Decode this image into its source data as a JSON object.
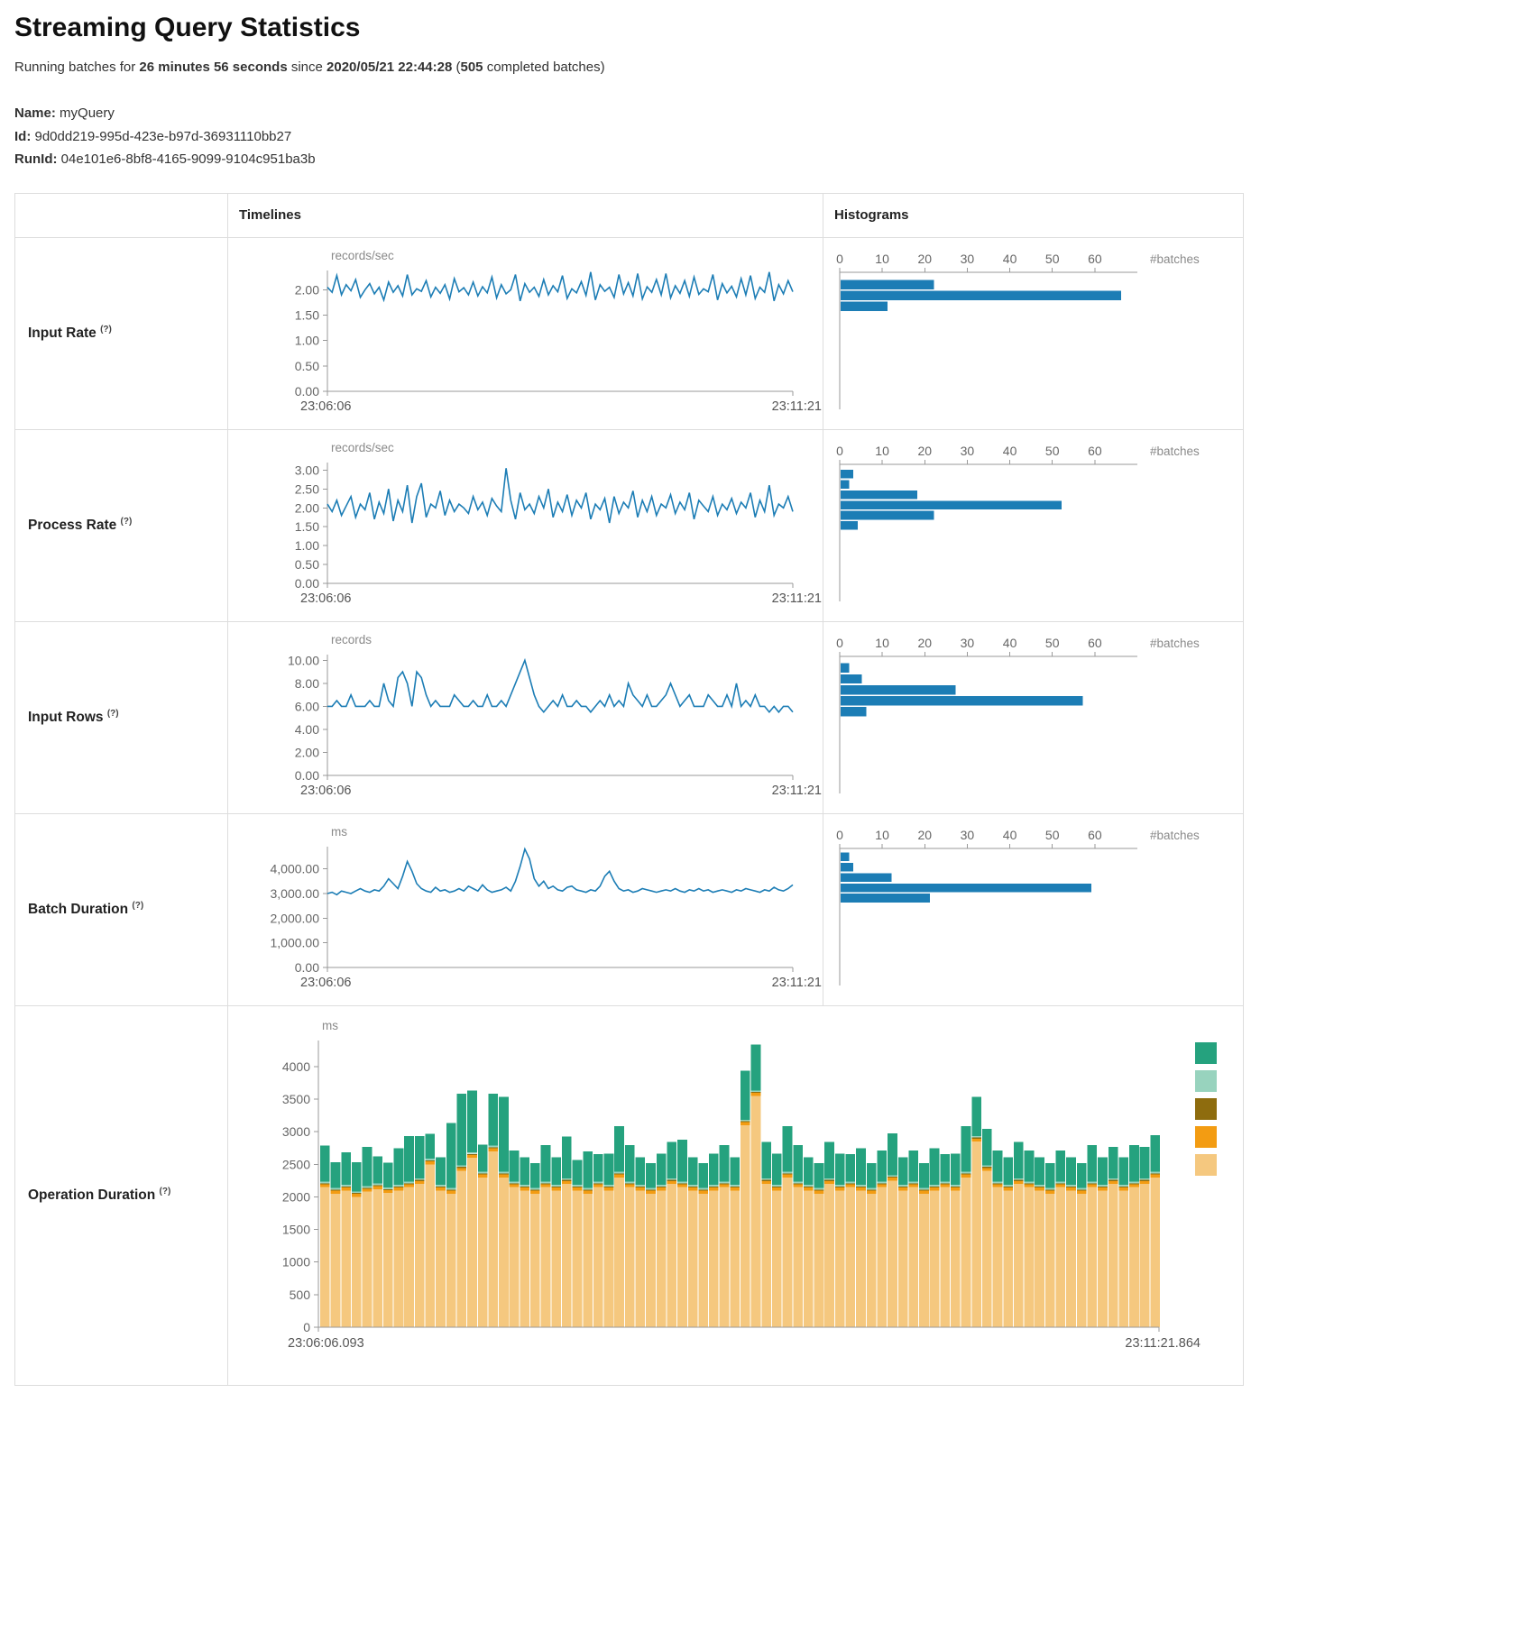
{
  "page": {
    "title": "Streaming Query Statistics",
    "subtitle": {
      "prefix": "Running batches for ",
      "duration": "26 minutes 56 seconds",
      "middle": " since ",
      "start_time": "2020/05/21 22:44:28",
      "paren_open": " (",
      "batch_count": "505",
      "suffix": " completed batches)"
    },
    "meta": {
      "name_label": "Name:",
      "name_value": "myQuery",
      "id_label": "Id:",
      "id_value": "9d0dd219-995d-423e-b97d-36931110bb27",
      "runid_label": "RunId:",
      "runid_value": "04e101e6-8bf8-4165-9099-9104c951ba3b"
    }
  },
  "table": {
    "headers": {
      "timelines": "Timelines",
      "histograms": "Histograms"
    },
    "rows": [
      {
        "label": "Input Rate",
        "help": "(?)"
      },
      {
        "label": "Process Rate",
        "help": "(?)"
      },
      {
        "label": "Input Rows",
        "help": "(?)"
      },
      {
        "label": "Batch Duration",
        "help": "(?)"
      },
      {
        "label": "Operation Duration",
        "help": "(?)"
      }
    ]
  },
  "colors": {
    "blue": "#1c7db5",
    "green": "#25a27e",
    "light_green": "#98d3be",
    "olive": "#8e6c0e",
    "orange": "#f39c12",
    "tan": "#f5c87f"
  },
  "chart_data": [
    {
      "id": "input-rate-timeline",
      "type": "line",
      "unit": "records/sec",
      "x_start_label": "23:06:06",
      "x_end_label": "23:11:21",
      "y_ticks": [
        0,
        0.5,
        1,
        1.5,
        2
      ],
      "y_tick_labels": [
        "0.00",
        "0.50",
        "1.00",
        "1.50",
        "2.00"
      ],
      "y_max": 2.38,
      "values": [
        2.05,
        1.95,
        2.28,
        1.9,
        2.1,
        1.98,
        2.2,
        1.85,
        2.0,
        2.12,
        1.92,
        2.05,
        1.8,
        2.15,
        1.95,
        2.08,
        1.88,
        2.3,
        1.9,
        2.02,
        1.97,
        2.18,
        1.86,
        2.05,
        1.93,
        2.1,
        1.82,
        2.22,
        1.96,
        2.04,
        1.9,
        2.15,
        1.88,
        2.06,
        1.94,
        2.25,
        1.84,
        2.1,
        1.92,
        2.0,
        2.3,
        1.78,
        2.12,
        1.95,
        2.05,
        1.87,
        2.2,
        1.9,
        2.08,
        1.96,
        2.28,
        1.83,
        2.02,
        1.94,
        2.16,
        1.89,
        2.35,
        1.8,
        2.1,
        1.97,
        2.05,
        1.85,
        2.3,
        1.92,
        2.14,
        1.88,
        2.32,
        1.82,
        2.06,
        1.95,
        2.2,
        1.9,
        2.32,
        1.84,
        2.08,
        1.93,
        2.18,
        1.87,
        2.25,
        1.91,
        2.02,
        1.96,
        2.3,
        1.8,
        2.12,
        1.94,
        2.07,
        1.86,
        2.22,
        1.9,
        2.28,
        1.83,
        2.05,
        1.95,
        2.35,
        1.78,
        2.1,
        1.92,
        2.18,
        1.96
      ]
    },
    {
      "id": "input-rate-histogram",
      "type": "bar",
      "orientation": "horizontal",
      "x_label": "#batches",
      "x_ticks": [
        0,
        10,
        20,
        30,
        40,
        50,
        60
      ],
      "x_max": 70,
      "bars": [
        {
          "count": 22,
          "top": 0.055,
          "height": 0.075
        },
        {
          "count": 66,
          "top": 0.135,
          "height": 0.075
        },
        {
          "count": 11,
          "top": 0.215,
          "height": 0.075
        }
      ]
    },
    {
      "id": "process-rate-timeline",
      "type": "line",
      "unit": "records/sec",
      "x_start_label": "23:06:06",
      "x_end_label": "23:11:21",
      "y_ticks": [
        0,
        0.5,
        1,
        1.5,
        2,
        2.5,
        3
      ],
      "y_tick_labels": [
        "0.00",
        "0.50",
        "1.00",
        "1.50",
        "2.00",
        "2.50",
        "3.00"
      ],
      "y_max": 3.2,
      "values": [
        2.1,
        1.9,
        2.2,
        1.8,
        2.05,
        2.3,
        1.75,
        2.1,
        1.95,
        2.4,
        1.7,
        2.15,
        1.85,
        2.5,
        1.65,
        2.2,
        1.9,
        2.6,
        1.6,
        2.3,
        2.65,
        1.75,
        2.1,
        2.0,
        2.45,
        1.8,
        2.2,
        1.9,
        2.1,
        2.0,
        1.85,
        2.3,
        1.95,
        2.15,
        1.8,
        2.25,
        2.05,
        1.9,
        3.05,
        2.2,
        1.7,
        2.4,
        1.95,
        2.1,
        1.85,
        2.3,
        2.0,
        2.5,
        1.75,
        2.15,
        1.9,
        2.35,
        1.8,
        2.2,
        2.0,
        2.4,
        1.7,
        2.1,
        1.95,
        2.25,
        1.6,
        2.3,
        1.85,
        2.15,
        2.0,
        2.45,
        1.75,
        2.2,
        1.9,
        2.3,
        1.8,
        2.1,
        2.0,
        2.35,
        1.85,
        2.15,
        1.95,
        2.4,
        1.7,
        2.2,
        2.05,
        1.9,
        2.3,
        1.8,
        2.1,
        1.95,
        2.25,
        1.85,
        2.15,
        2.0,
        2.4,
        1.75,
        2.2,
        1.9,
        2.6,
        1.8,
        2.1,
        2.0,
        2.3,
        1.9
      ]
    },
    {
      "id": "process-rate-histogram",
      "type": "bar",
      "orientation": "horizontal",
      "x_label": "#batches",
      "x_ticks": [
        0,
        10,
        20,
        30,
        40,
        50,
        60
      ],
      "x_max": 70,
      "bars": [
        {
          "count": 3,
          "top": 0.04,
          "height": 0.07
        },
        {
          "count": 2,
          "top": 0.115,
          "height": 0.07
        },
        {
          "count": 18,
          "top": 0.19,
          "height": 0.07
        },
        {
          "count": 52,
          "top": 0.265,
          "height": 0.07
        },
        {
          "count": 22,
          "top": 0.34,
          "height": 0.07
        },
        {
          "count": 4,
          "top": 0.415,
          "height": 0.07
        }
      ]
    },
    {
      "id": "input-rows-timeline",
      "type": "line",
      "unit": "records",
      "x_start_label": "23:06:06",
      "x_end_label": "23:11:21",
      "y_ticks": [
        0,
        2,
        4,
        6,
        8,
        10
      ],
      "y_tick_labels": [
        "0.00",
        "2.00",
        "4.00",
        "6.00",
        "8.00",
        "10.00"
      ],
      "y_max": 10.5,
      "values": [
        6,
        6,
        6.5,
        6,
        6,
        7,
        6,
        6,
        6,
        6.5,
        6,
        6,
        8,
        6.5,
        6,
        8.5,
        9,
        8,
        6,
        9,
        8.5,
        7,
        6,
        6.5,
        6,
        6,
        6,
        7,
        6.5,
        6,
        6,
        6.5,
        6,
        6,
        7,
        6,
        6,
        6.5,
        6,
        7,
        8,
        9,
        10,
        8.5,
        7,
        6,
        5.5,
        6,
        6.5,
        6,
        7,
        6,
        6,
        6.5,
        6,
        6,
        5.5,
        6,
        6.5,
        6,
        7,
        6,
        6.5,
        6,
        8,
        7,
        6.5,
        6,
        7,
        6,
        6,
        6.5,
        7,
        8,
        7,
        6,
        6.5,
        7,
        6,
        6,
        6,
        7,
        6.5,
        6,
        6,
        7,
        6,
        8,
        6,
        6.5,
        6,
        7,
        6,
        6,
        5.5,
        6,
        5.5,
        6,
        6,
        5.5
      ]
    },
    {
      "id": "input-rows-histogram",
      "type": "bar",
      "orientation": "horizontal",
      "x_label": "#batches",
      "x_ticks": [
        0,
        10,
        20,
        30,
        40,
        50,
        60
      ],
      "x_max": 70,
      "bars": [
        {
          "count": 2,
          "top": 0.05,
          "height": 0.075
        },
        {
          "count": 5,
          "top": 0.13,
          "height": 0.075
        },
        {
          "count": 27,
          "top": 0.21,
          "height": 0.075
        },
        {
          "count": 57,
          "top": 0.29,
          "height": 0.075
        },
        {
          "count": 6,
          "top": 0.37,
          "height": 0.075
        }
      ]
    },
    {
      "id": "batch-duration-timeline",
      "type": "line",
      "unit": "ms",
      "x_start_label": "23:06:06",
      "x_end_label": "23:11:21",
      "y_ticks": [
        0,
        1000,
        2000,
        3000,
        4000
      ],
      "y_tick_labels": [
        "0.00",
        "1,000.00",
        "2,000.00",
        "3,000.00",
        "4,000.00"
      ],
      "y_max": 4900,
      "values": [
        3000,
        3050,
        2950,
        3100,
        3050,
        3000,
        3100,
        3200,
        3100,
        3050,
        3150,
        3100,
        3300,
        3600,
        3400,
        3200,
        3700,
        4300,
        3900,
        3400,
        3200,
        3100,
        3050,
        3250,
        3100,
        3150,
        3050,
        3100,
        3200,
        3100,
        3300,
        3200,
        3100,
        3350,
        3150,
        3050,
        3100,
        3150,
        3250,
        3100,
        3500,
        4100,
        4800,
        4400,
        3600,
        3300,
        3500,
        3200,
        3300,
        3150,
        3100,
        3250,
        3300,
        3150,
        3100,
        3050,
        3150,
        3100,
        3300,
        3700,
        3900,
        3500,
        3200,
        3100,
        3150,
        3050,
        3100,
        3200,
        3150,
        3100,
        3050,
        3100,
        3150,
        3100,
        3200,
        3100,
        3050,
        3150,
        3100,
        3200,
        3100,
        3150,
        3050,
        3100,
        3150,
        3100,
        3050,
        3150,
        3100,
        3200,
        3150,
        3100,
        3050,
        3150,
        3100,
        3250,
        3150,
        3100,
        3200,
        3350
      ]
    },
    {
      "id": "batch-duration-histogram",
      "type": "bar",
      "orientation": "horizontal",
      "x_label": "#batches",
      "x_ticks": [
        0,
        10,
        20,
        30,
        40,
        50,
        60
      ],
      "x_max": 70,
      "bars": [
        {
          "count": 2,
          "top": 0.03,
          "height": 0.07
        },
        {
          "count": 3,
          "top": 0.105,
          "height": 0.07
        },
        {
          "count": 12,
          "top": 0.18,
          "height": 0.07
        },
        {
          "count": 59,
          "top": 0.255,
          "height": 0.07
        },
        {
          "count": 21,
          "top": 0.33,
          "height": 0.07
        }
      ]
    },
    {
      "id": "operation-duration",
      "type": "bar",
      "stacked": true,
      "unit": "ms",
      "x_start_label": "23:06:06.093",
      "x_end_label": "23:11:21.864",
      "y_ticks": [
        0,
        500,
        1000,
        1500,
        2000,
        2500,
        3000,
        3500,
        4000
      ],
      "y_tick_labels": [
        "0",
        "500",
        "1000",
        "1500",
        "2000",
        "2500",
        "3000",
        "3500",
        "4000"
      ],
      "y_max": 4400,
      "legend_labels": [
        "",
        "",
        "",
        "",
        ""
      ],
      "series": [
        {
          "name": "layer-1",
          "label": "",
          "color": "#f5c87f",
          "values": [
            2150,
            2050,
            2100,
            2000,
            2080,
            2120,
            2060,
            2100,
            2150,
            2200,
            2500,
            2100,
            2050,
            2400,
            2600,
            2300,
            2700,
            2300,
            2150,
            2100,
            2050,
            2150,
            2100,
            2200,
            2100,
            2050,
            2150,
            2100,
            2300,
            2150,
            2100,
            2050,
            2100,
            2200,
            2150,
            2100,
            2050,
            2100,
            2150,
            2100,
            3100,
            3550,
            2200,
            2100,
            2300,
            2150,
            2100,
            2050,
            2200,
            2100,
            2150,
            2100,
            2050,
            2150,
            2250,
            2100,
            2150,
            2050,
            2100,
            2150,
            2100,
            2300,
            2850,
            2400,
            2150,
            2100,
            2200,
            2150,
            2100,
            2050,
            2150,
            2100,
            2050,
            2150,
            2100,
            2200,
            2100,
            2150,
            2200,
            2300
          ]
        },
        {
          "name": "layer-2",
          "label": "",
          "color": "#f39c12",
          "values": 45
        },
        {
          "name": "layer-3",
          "label": "",
          "color": "#8e6c0e",
          "values": 15
        },
        {
          "name": "layer-4",
          "label": "",
          "color": "#98d3be",
          "values": 25
        },
        {
          "name": "layer-5",
          "label": "",
          "color": "#25a27e",
          "values": [
            550,
            400,
            500,
            450,
            600,
            420,
            380,
            560,
            700,
            650,
            380,
            420,
            1000,
            1100,
            950,
            420,
            800,
            1150,
            480,
            420,
            380,
            560,
            420,
            640,
            380,
            560,
            420,
            480,
            700,
            560,
            420,
            380,
            480,
            560,
            640,
            420,
            380,
            480,
            560,
            420,
            750,
            700,
            560,
            480,
            700,
            560,
            420,
            380,
            560,
            480,
            420,
            560,
            380,
            480,
            640,
            420,
            480,
            380,
            560,
            420,
            480,
            700,
            600,
            560,
            480,
            420,
            560,
            480,
            420,
            380,
            480,
            420,
            380,
            560,
            420,
            480,
            420,
            560,
            480,
            560
          ]
        }
      ]
    }
  ]
}
